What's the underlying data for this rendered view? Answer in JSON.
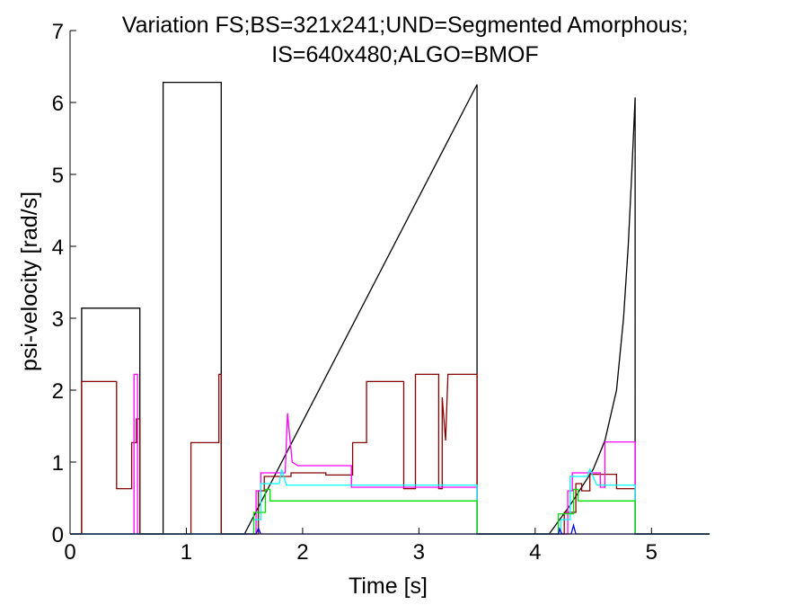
{
  "chart_data": {
    "type": "line",
    "title": [
      "Variation FS;BS=321x241;UND=Segmented Amorphous;",
      "IS=640x480;ALGO=BMOF"
    ],
    "xlabel": "Time [s]",
    "ylabel": "psi-velocity [rad/s]",
    "xlim": [
      0,
      5.5
    ],
    "ylim": [
      0,
      7
    ],
    "xticks": [
      0,
      1,
      2,
      3,
      4,
      5
    ],
    "yticks": [
      0,
      1,
      2,
      3,
      4,
      5,
      6,
      7
    ],
    "grid": false,
    "series": [
      {
        "color": "#000000",
        "points": [
          [
            0,
            0
          ],
          [
            0.1,
            0
          ],
          [
            0.1,
            3.14
          ],
          [
            0.6,
            3.14
          ],
          [
            0.6,
            0
          ],
          [
            0.8,
            0
          ],
          [
            0.8,
            6.28
          ],
          [
            1.3,
            6.28
          ],
          [
            1.3,
            0
          ],
          [
            1.5,
            0
          ],
          [
            3.5,
            6.25
          ],
          [
            3.5,
            0
          ],
          [
            4.12,
            0
          ],
          [
            4.3,
            0.4
          ],
          [
            4.5,
            0.9
          ],
          [
            4.6,
            1.3
          ],
          [
            4.7,
            2.0
          ],
          [
            4.76,
            3.0
          ],
          [
            4.8,
            4.0
          ],
          [
            4.83,
            5.0
          ],
          [
            4.86,
            6.07
          ],
          [
            4.86,
            0
          ],
          [
            5.5,
            0
          ]
        ]
      },
      {
        "color": "#8B0000",
        "points": [
          [
            0,
            0
          ],
          [
            0.1,
            0
          ],
          [
            0.1,
            2.12
          ],
          [
            0.4,
            2.12
          ],
          [
            0.4,
            0.63
          ],
          [
            0.53,
            0.63
          ],
          [
            0.53,
            1.27
          ],
          [
            0.57,
            1.27
          ],
          [
            0.57,
            1.6
          ],
          [
            0.6,
            1.6
          ],
          [
            0.6,
            0
          ],
          [
            1.04,
            0
          ],
          [
            1.04,
            1.27
          ],
          [
            1.28,
            1.27
          ],
          [
            1.28,
            2.22
          ],
          [
            1.3,
            2.22
          ],
          [
            1.3,
            0
          ],
          [
            1.62,
            0
          ],
          [
            1.62,
            0.6
          ],
          [
            1.67,
            0.6
          ],
          [
            1.67,
            0.8
          ],
          [
            1.9,
            0.8
          ],
          [
            1.9,
            0.85
          ],
          [
            2.2,
            0.85
          ],
          [
            2.2,
            0.82
          ],
          [
            2.43,
            0.82
          ],
          [
            2.43,
            1.27
          ],
          [
            2.55,
            1.27
          ],
          [
            2.55,
            2.12
          ],
          [
            2.87,
            2.12
          ],
          [
            2.87,
            0.63
          ],
          [
            2.97,
            0.63
          ],
          [
            2.97,
            2.22
          ],
          [
            3.17,
            2.22
          ],
          [
            3.17,
            0.63
          ],
          [
            3.2,
            0.63
          ],
          [
            3.2,
            1.9
          ],
          [
            3.23,
            1.3
          ],
          [
            3.25,
            2.22
          ],
          [
            3.5,
            2.22
          ],
          [
            3.5,
            0
          ],
          [
            4.25,
            0
          ],
          [
            4.25,
            0.3
          ],
          [
            4.35,
            0.3
          ],
          [
            4.35,
            0.7
          ],
          [
            4.4,
            0.7
          ],
          [
            4.4,
            0.6
          ],
          [
            4.47,
            0.6
          ],
          [
            4.47,
            0.83
          ],
          [
            4.7,
            0.83
          ],
          [
            4.7,
            0.63
          ],
          [
            4.86,
            0.63
          ],
          [
            4.86,
            0
          ],
          [
            5.5,
            0
          ]
        ]
      },
      {
        "color": "#FF00FF",
        "points": [
          [
            0,
            0
          ],
          [
            0.55,
            0
          ],
          [
            0.55,
            2.22
          ],
          [
            0.58,
            2.22
          ],
          [
            0.58,
            0
          ],
          [
            1.6,
            0
          ],
          [
            1.6,
            0.6
          ],
          [
            1.64,
            0.6
          ],
          [
            1.64,
            0.85
          ],
          [
            1.85,
            0.85
          ],
          [
            1.87,
            1.68
          ],
          [
            1.91,
            1.0
          ],
          [
            1.96,
            0.95
          ],
          [
            2.42,
            0.95
          ],
          [
            2.42,
            0.65
          ],
          [
            3.5,
            0.65
          ],
          [
            3.5,
            0
          ],
          [
            4.28,
            0
          ],
          [
            4.28,
            0.6
          ],
          [
            4.32,
            0.6
          ],
          [
            4.32,
            0.85
          ],
          [
            4.56,
            0.85
          ],
          [
            4.56,
            0.65
          ],
          [
            4.6,
            0.65
          ],
          [
            4.6,
            1.28
          ],
          [
            4.86,
            1.28
          ],
          [
            4.86,
            0
          ],
          [
            5.5,
            0
          ]
        ]
      },
      {
        "color": "#00FFFF",
        "points": [
          [
            0,
            0
          ],
          [
            1.58,
            0
          ],
          [
            1.58,
            0.2
          ],
          [
            1.64,
            0.2
          ],
          [
            1.64,
            0.7
          ],
          [
            1.8,
            0.7
          ],
          [
            1.82,
            0.9
          ],
          [
            1.86,
            0.68
          ],
          [
            3.5,
            0.68
          ],
          [
            3.5,
            0
          ],
          [
            4.22,
            0
          ],
          [
            4.22,
            0.2
          ],
          [
            4.3,
            0.2
          ],
          [
            4.3,
            0.8
          ],
          [
            4.45,
            0.8
          ],
          [
            4.47,
            0.9
          ],
          [
            4.53,
            0.68
          ],
          [
            4.86,
            0.68
          ],
          [
            4.86,
            0
          ],
          [
            5.5,
            0
          ]
        ]
      },
      {
        "color": "#00DD00",
        "points": [
          [
            0,
            0
          ],
          [
            1.58,
            0
          ],
          [
            1.58,
            0.3
          ],
          [
            1.68,
            0.3
          ],
          [
            1.68,
            0.62
          ],
          [
            1.72,
            0.62
          ],
          [
            1.72,
            0.46
          ],
          [
            3.5,
            0.46
          ],
          [
            3.5,
            0
          ],
          [
            4.2,
            0
          ],
          [
            4.2,
            0.28
          ],
          [
            4.33,
            0.28
          ],
          [
            4.33,
            0.62
          ],
          [
            4.37,
            0.62
          ],
          [
            4.37,
            0.46
          ],
          [
            4.86,
            0.46
          ],
          [
            4.86,
            0
          ],
          [
            5.5,
            0
          ]
        ]
      },
      {
        "color": "#0000FF",
        "points": [
          [
            0,
            0
          ],
          [
            1.6,
            0
          ],
          [
            1.62,
            0.08
          ],
          [
            1.64,
            0
          ],
          [
            4.2,
            0
          ],
          [
            4.21,
            0.07
          ],
          [
            4.23,
            0
          ],
          [
            4.31,
            0
          ],
          [
            4.33,
            0.12
          ],
          [
            4.35,
            0
          ],
          [
            5.5,
            0
          ]
        ]
      }
    ]
  }
}
